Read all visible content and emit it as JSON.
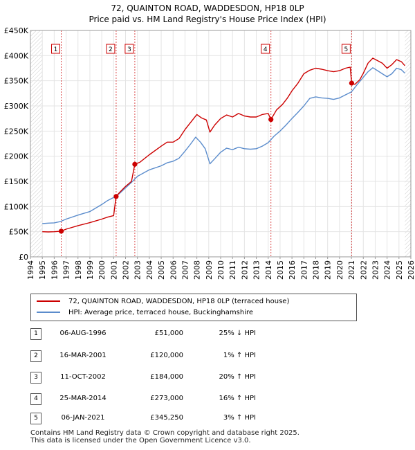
{
  "chart_data": {
    "type": "line",
    "title": "72, QUAINTON ROAD, WADDESDON, HP18 0LP",
    "subtitle": "Price paid vs. HM Land Registry's House Price Index (HPI)",
    "xlim": [
      1994,
      2026
    ],
    "ylim": [
      0,
      450000
    ],
    "x_ticks": [
      "1994",
      "1995",
      "1996",
      "1997",
      "1998",
      "1999",
      "2000",
      "2001",
      "2002",
      "2003",
      "2004",
      "2005",
      "2006",
      "2007",
      "2008",
      "2009",
      "2010",
      "2011",
      "2012",
      "2013",
      "2014",
      "2015",
      "2016",
      "2017",
      "2018",
      "2019",
      "2020",
      "2021",
      "2022",
      "2023",
      "2024",
      "2025",
      "2026"
    ],
    "y_ticks": [
      {
        "value": 0,
        "label": "£0"
      },
      {
        "value": 50000,
        "label": "£50K"
      },
      {
        "value": 100000,
        "label": "£100K"
      },
      {
        "value": 150000,
        "label": "£150K"
      },
      {
        "value": 200000,
        "label": "£200K"
      },
      {
        "value": 250000,
        "label": "£250K"
      },
      {
        "value": 300000,
        "label": "£300K"
      },
      {
        "value": 350000,
        "label": "£350K"
      },
      {
        "value": 400000,
        "label": "£400K"
      },
      {
        "value": 450000,
        "label": "£450K"
      }
    ],
    "series": [
      {
        "name": "72, QUAINTON ROAD, WADDESDON, HP18 0LP (terraced house)",
        "color": "#cc0000",
        "points": [
          [
            1995.0,
            50000
          ],
          [
            1995.5,
            49500
          ],
          [
            1996.0,
            50000
          ],
          [
            1996.59,
            51000
          ],
          [
            1997.0,
            55000
          ],
          [
            1998.0,
            62000
          ],
          [
            1999.0,
            68000
          ],
          [
            2000.0,
            75000
          ],
          [
            2000.5,
            79000
          ],
          [
            2001.0,
            82000
          ],
          [
            2001.2,
            120000
          ],
          [
            2001.5,
            128000
          ],
          [
            2002.0,
            140000
          ],
          [
            2002.5,
            150000
          ],
          [
            2002.78,
            184000
          ],
          [
            2003.2,
            188000
          ],
          [
            2004.0,
            203000
          ],
          [
            2005.0,
            220000
          ],
          [
            2005.5,
            228000
          ],
          [
            2006.0,
            228000
          ],
          [
            2006.5,
            235000
          ],
          [
            2007.0,
            253000
          ],
          [
            2007.5,
            268000
          ],
          [
            2008.0,
            283000
          ],
          [
            2008.4,
            276000
          ],
          [
            2008.8,
            272000
          ],
          [
            2009.1,
            248000
          ],
          [
            2009.5,
            262000
          ],
          [
            2010.0,
            275000
          ],
          [
            2010.5,
            282000
          ],
          [
            2011.0,
            278000
          ],
          [
            2011.5,
            285000
          ],
          [
            2012.0,
            280000
          ],
          [
            2012.5,
            278000
          ],
          [
            2013.0,
            278000
          ],
          [
            2013.5,
            283000
          ],
          [
            2014.0,
            285000
          ],
          [
            2014.23,
            273000
          ],
          [
            2014.7,
            292000
          ],
          [
            2015.2,
            303000
          ],
          [
            2015.6,
            315000
          ],
          [
            2016.0,
            330000
          ],
          [
            2016.5,
            345000
          ],
          [
            2017.0,
            364000
          ],
          [
            2017.5,
            371000
          ],
          [
            2018.0,
            375000
          ],
          [
            2018.5,
            373000
          ],
          [
            2019.0,
            370000
          ],
          [
            2019.5,
            368000
          ],
          [
            2020.0,
            370000
          ],
          [
            2020.5,
            375000
          ],
          [
            2020.9,
            377000
          ],
          [
            2021.02,
            345250
          ],
          [
            2021.3,
            343000
          ],
          [
            2021.7,
            352000
          ],
          [
            2022.0,
            365000
          ],
          [
            2022.4,
            385000
          ],
          [
            2022.8,
            395000
          ],
          [
            2023.2,
            390000
          ],
          [
            2023.6,
            385000
          ],
          [
            2024.0,
            375000
          ],
          [
            2024.4,
            382000
          ],
          [
            2024.8,
            392000
          ],
          [
            2025.2,
            388000
          ],
          [
            2025.5,
            380000
          ]
        ]
      },
      {
        "name": "HPI: Average price, terraced house, Buckinghamshire",
        "color": "#5b8ccc",
        "points": [
          [
            1995.0,
            66000
          ],
          [
            1995.5,
            67000
          ],
          [
            1996.0,
            67500
          ],
          [
            1996.5,
            70000
          ],
          [
            1997.0,
            75000
          ],
          [
            1998.0,
            83000
          ],
          [
            1999.0,
            90000
          ],
          [
            2000.0,
            104000
          ],
          [
            2000.5,
            112000
          ],
          [
            2001.0,
            118000
          ],
          [
            2001.5,
            126000
          ],
          [
            2002.0,
            137000
          ],
          [
            2002.5,
            148000
          ],
          [
            2003.0,
            160000
          ],
          [
            2004.0,
            173000
          ],
          [
            2005.0,
            181000
          ],
          [
            2005.5,
            187000
          ],
          [
            2006.0,
            190000
          ],
          [
            2006.5,
            196000
          ],
          [
            2007.0,
            210000
          ],
          [
            2007.5,
            225000
          ],
          [
            2007.9,
            238000
          ],
          [
            2008.3,
            228000
          ],
          [
            2008.7,
            215000
          ],
          [
            2009.1,
            185000
          ],
          [
            2009.5,
            195000
          ],
          [
            2010.0,
            208000
          ],
          [
            2010.5,
            216000
          ],
          [
            2011.0,
            213000
          ],
          [
            2011.5,
            218000
          ],
          [
            2012.0,
            215000
          ],
          [
            2012.5,
            214000
          ],
          [
            2013.0,
            215000
          ],
          [
            2013.5,
            220000
          ],
          [
            2014.0,
            227000
          ],
          [
            2014.5,
            240000
          ],
          [
            2015.0,
            250000
          ],
          [
            2015.5,
            262000
          ],
          [
            2016.0,
            275000
          ],
          [
            2016.5,
            287000
          ],
          [
            2017.0,
            300000
          ],
          [
            2017.5,
            315000
          ],
          [
            2018.0,
            318000
          ],
          [
            2018.5,
            316000
          ],
          [
            2019.0,
            315000
          ],
          [
            2019.5,
            313000
          ],
          [
            2020.0,
            316000
          ],
          [
            2020.5,
            322000
          ],
          [
            2021.0,
            328000
          ],
          [
            2021.5,
            343000
          ],
          [
            2022.0,
            357000
          ],
          [
            2022.4,
            368000
          ],
          [
            2022.8,
            376000
          ],
          [
            2023.2,
            370000
          ],
          [
            2023.6,
            364000
          ],
          [
            2024.0,
            358000
          ],
          [
            2024.4,
            364000
          ],
          [
            2024.8,
            375000
          ],
          [
            2025.2,
            372000
          ],
          [
            2025.5,
            365000
          ]
        ]
      }
    ],
    "sales": [
      {
        "num": "1",
        "x": 1996.59,
        "price": 51000,
        "date": "06-AUG-1996",
        "price_label": "£51,000",
        "hpi": "25% ↓ HPI"
      },
      {
        "num": "2",
        "x": 2001.21,
        "price": 120000,
        "date": "16-MAR-2001",
        "price_label": "£120,000",
        "hpi": "1% ↑ HPI"
      },
      {
        "num": "3",
        "x": 2002.78,
        "price": 184000,
        "date": "11-OCT-2002",
        "price_label": "£184,000",
        "hpi": "20% ↑ HPI"
      },
      {
        "num": "4",
        "x": 2014.23,
        "price": 273000,
        "date": "25-MAR-2014",
        "price_label": "£273,000",
        "hpi": "16% ↑ HPI"
      },
      {
        "num": "5",
        "x": 2021.02,
        "price": 345250,
        "date": "06-JAN-2021",
        "price_label": "£345,250",
        "hpi": "3% ↑ HPI"
      }
    ],
    "hatched_ranges": [
      [
        1994,
        1995
      ],
      [
        2025.5,
        2026
      ]
    ],
    "grid": true
  },
  "footer": {
    "line1": "Contains HM Land Registry data © Crown copyright and database right 2025.",
    "line2": "This data is licensed under the Open Government Licence v3.0."
  }
}
